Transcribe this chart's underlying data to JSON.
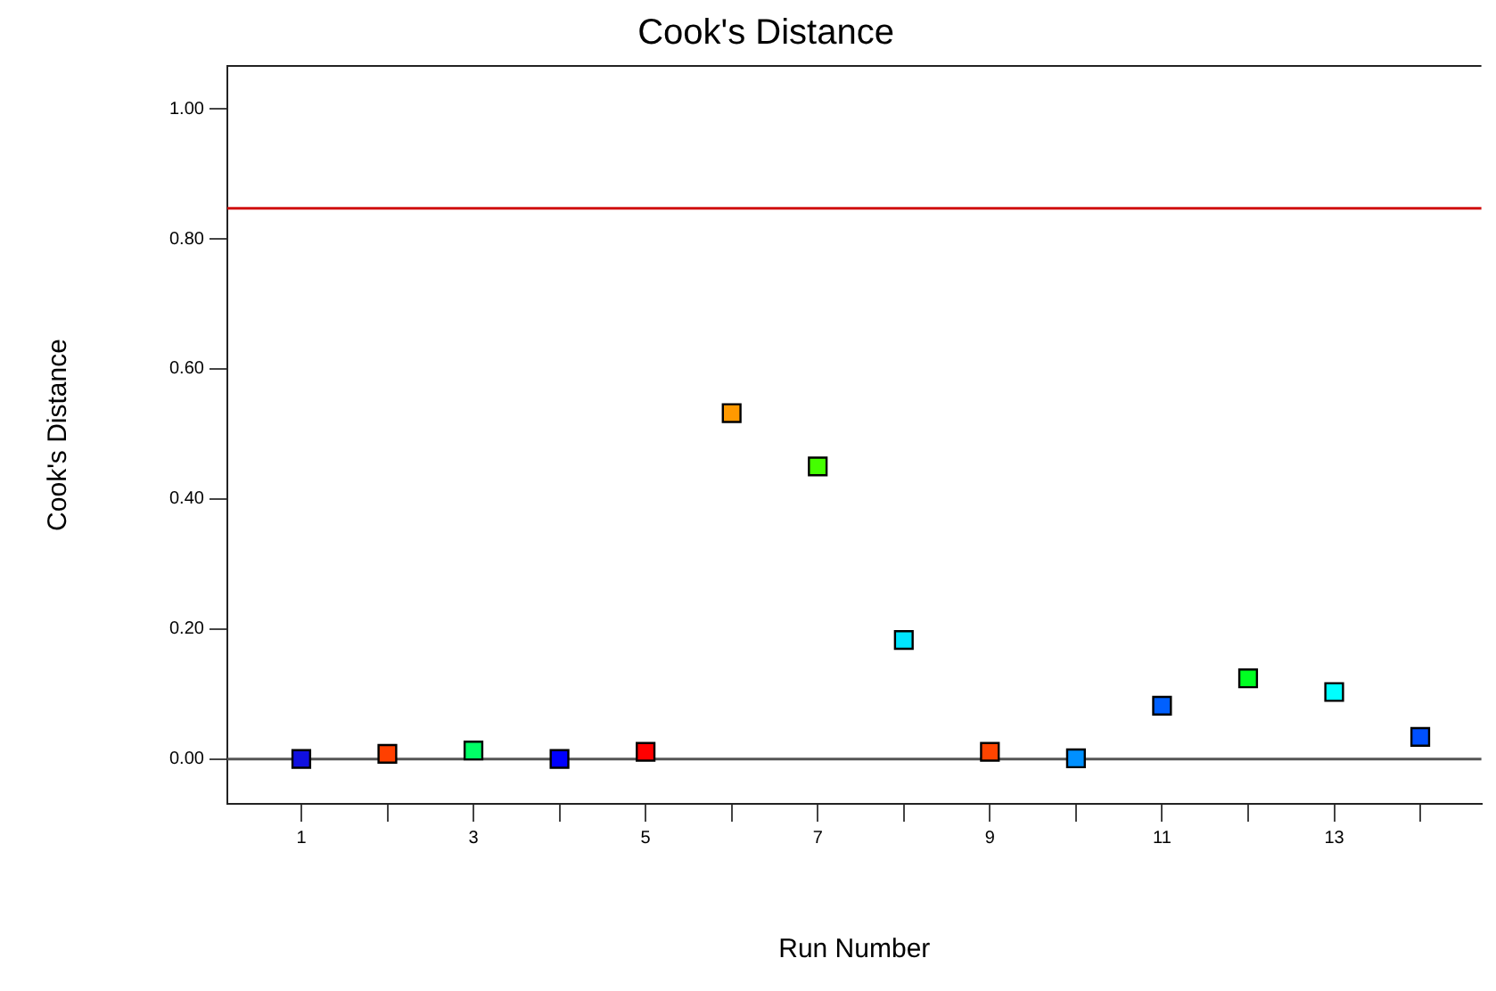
{
  "chart_data": {
    "type": "scatter",
    "title": "Cook's Distance",
    "xlabel": "Run Number",
    "ylabel": "Cook's Distance",
    "x": [
      1,
      2,
      3,
      4,
      5,
      6,
      7,
      8,
      9,
      10,
      11,
      12,
      13,
      14
    ],
    "values": [
      0.0,
      0.008,
      0.013,
      0.0,
      0.011,
      0.532,
      0.45,
      0.183,
      0.011,
      0.001,
      0.082,
      0.124,
      0.103,
      0.034
    ],
    "colors": [
      "#1010e0",
      "#ff4000",
      "#00ff66",
      "#0000ff",
      "#ff0000",
      "#ff9900",
      "#44ff00",
      "#00e5ff",
      "#ff4400",
      "#0090ff",
      "#0060ff",
      "#00ff22",
      "#00ffff",
      "#0050ff"
    ],
    "xlim": [
      0.14,
      14.71
    ],
    "xticks": [
      1,
      {
        "value": 2,
        "label": null
      },
      3,
      {
        "value": 4,
        "label": null
      },
      5,
      {
        "value": 6,
        "label": null
      },
      7,
      {
        "value": 8,
        "label": null
      },
      9,
      {
        "value": 10,
        "label": null
      },
      11,
      {
        "value": 12,
        "label": null
      },
      13,
      {
        "value": 14,
        "label": null
      }
    ],
    "ylim": [
      -0.069,
      1.066
    ],
    "yticks": [
      {
        "value": 0,
        "label": "0.00"
      },
      {
        "value": 0.2,
        "label": "0.20"
      },
      {
        "value": 0.4,
        "label": "0.40"
      },
      {
        "value": 0.6,
        "label": "0.60"
      },
      {
        "value": 0.8,
        "label": "0.80"
      },
      {
        "value": 1,
        "label": "1.00"
      }
    ],
    "ref_lines": [
      {
        "axis": "y",
        "value": 0.847,
        "color": "#d01010"
      },
      {
        "axis": "y",
        "value": 0,
        "color": "#555555"
      }
    ],
    "grid": false,
    "legend": false,
    "marker": "square"
  }
}
